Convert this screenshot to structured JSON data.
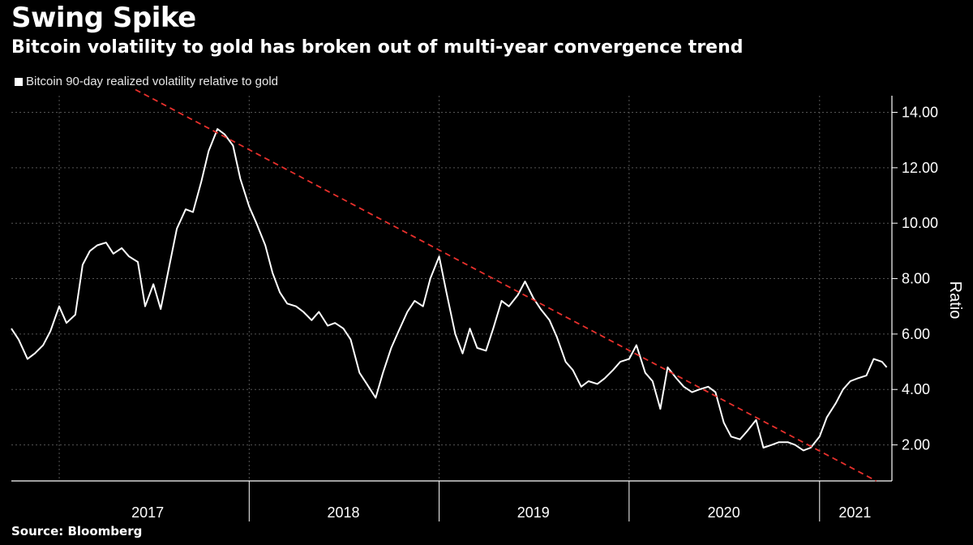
{
  "header": {
    "title": "Swing Spike",
    "subtitle": "Bitcoin volatility to gold has broken out of multi-year convergence trend"
  },
  "footer": {
    "source": "Source: Bloomberg"
  },
  "colors": {
    "background": "#000000",
    "series": "#ffffff",
    "trend": "#e8302c",
    "grid": "#555555"
  },
  "chart_data": {
    "type": "line",
    "title": "Swing Spike",
    "subtitle": "Bitcoin volatility to gold has broken out of multi-year convergence trend",
    "ylabel": "Ratio",
    "legend": "top-left",
    "grid": true,
    "ylim": [
      0.7,
      14.6
    ],
    "xlim": [
      "2016-10-01",
      "2021-03-15"
    ],
    "x_ticks": [
      "2017",
      "2018",
      "2019",
      "2020",
      "2021"
    ],
    "y_ticks": [
      "2.00",
      "4.00",
      "6.00",
      "8.00",
      "10.00",
      "12.00",
      "14.00"
    ],
    "series": [
      {
        "name": "Bitcoin 90-day realized volatility relative to gold",
        "color": "#ffffff",
        "points": [
          [
            "2016-10-01",
            6.2
          ],
          [
            "2016-10-15",
            5.8
          ],
          [
            "2016-11-01",
            5.1
          ],
          [
            "2016-11-15",
            5.3
          ],
          [
            "2016-12-01",
            5.6
          ],
          [
            "2016-12-15",
            6.1
          ],
          [
            "2017-01-01",
            7.0
          ],
          [
            "2017-01-15",
            6.4
          ],
          [
            "2017-02-01",
            6.7
          ],
          [
            "2017-02-15",
            8.5
          ],
          [
            "2017-03-01",
            9.0
          ],
          [
            "2017-03-15",
            9.2
          ],
          [
            "2017-04-01",
            9.3
          ],
          [
            "2017-04-15",
            8.9
          ],
          [
            "2017-05-01",
            9.1
          ],
          [
            "2017-05-15",
            8.8
          ],
          [
            "2017-06-01",
            8.6
          ],
          [
            "2017-06-15",
            7.0
          ],
          [
            "2017-07-01",
            7.8
          ],
          [
            "2017-07-15",
            6.9
          ],
          [
            "2017-08-01",
            8.5
          ],
          [
            "2017-08-15",
            9.8
          ],
          [
            "2017-09-01",
            10.5
          ],
          [
            "2017-09-15",
            10.4
          ],
          [
            "2017-10-01",
            11.5
          ],
          [
            "2017-10-15",
            12.6
          ],
          [
            "2017-11-01",
            13.4
          ],
          [
            "2017-11-15",
            13.2
          ],
          [
            "2017-12-01",
            12.8
          ],
          [
            "2017-12-15",
            11.6
          ],
          [
            "2018-01-01",
            10.6
          ],
          [
            "2018-01-15",
            10.0
          ],
          [
            "2018-02-01",
            9.2
          ],
          [
            "2018-02-15",
            8.2
          ],
          [
            "2018-03-01",
            7.5
          ],
          [
            "2018-03-15",
            7.1
          ],
          [
            "2018-04-01",
            7.0
          ],
          [
            "2018-04-15",
            6.8
          ],
          [
            "2018-05-01",
            6.5
          ],
          [
            "2018-05-15",
            6.8
          ],
          [
            "2018-06-01",
            6.3
          ],
          [
            "2018-06-15",
            6.4
          ],
          [
            "2018-07-01",
            6.2
          ],
          [
            "2018-07-15",
            5.8
          ],
          [
            "2018-08-01",
            4.6
          ],
          [
            "2018-08-15",
            4.2
          ],
          [
            "2018-09-01",
            3.7
          ],
          [
            "2018-09-15",
            4.6
          ],
          [
            "2018-10-01",
            5.5
          ],
          [
            "2018-10-15",
            6.1
          ],
          [
            "2018-11-01",
            6.8
          ],
          [
            "2018-11-15",
            7.2
          ],
          [
            "2018-12-01",
            7.0
          ],
          [
            "2018-12-15",
            8.0
          ],
          [
            "2019-01-01",
            8.8
          ],
          [
            "2019-01-15",
            7.5
          ],
          [
            "2019-02-01",
            6.0
          ],
          [
            "2019-02-15",
            5.3
          ],
          [
            "2019-03-01",
            6.2
          ],
          [
            "2019-03-15",
            5.5
          ],
          [
            "2019-04-01",
            5.4
          ],
          [
            "2019-04-15",
            6.2
          ],
          [
            "2019-05-01",
            7.2
          ],
          [
            "2019-05-15",
            7.0
          ],
          [
            "2019-06-01",
            7.4
          ],
          [
            "2019-06-15",
            7.9
          ],
          [
            "2019-07-01",
            7.3
          ],
          [
            "2019-07-15",
            6.9
          ],
          [
            "2019-08-01",
            6.5
          ],
          [
            "2019-08-15",
            5.9
          ],
          [
            "2019-09-01",
            5.0
          ],
          [
            "2019-09-15",
            4.7
          ],
          [
            "2019-10-01",
            4.1
          ],
          [
            "2019-10-15",
            4.3
          ],
          [
            "2019-11-01",
            4.2
          ],
          [
            "2019-11-15",
            4.4
          ],
          [
            "2019-12-01",
            4.7
          ],
          [
            "2019-12-15",
            5.0
          ],
          [
            "2020-01-01",
            5.1
          ],
          [
            "2020-01-15",
            5.6
          ],
          [
            "2020-02-01",
            4.6
          ],
          [
            "2020-02-15",
            4.3
          ],
          [
            "2020-03-01",
            3.3
          ],
          [
            "2020-03-15",
            4.8
          ],
          [
            "2020-04-01",
            4.4
          ],
          [
            "2020-04-15",
            4.1
          ],
          [
            "2020-05-01",
            3.9
          ],
          [
            "2020-05-15",
            4.0
          ],
          [
            "2020-06-01",
            4.1
          ],
          [
            "2020-06-15",
            3.9
          ],
          [
            "2020-07-01",
            2.8
          ],
          [
            "2020-07-15",
            2.3
          ],
          [
            "2020-08-01",
            2.2
          ],
          [
            "2020-08-15",
            2.5
          ],
          [
            "2020-09-01",
            2.9
          ],
          [
            "2020-09-15",
            1.9
          ],
          [
            "2020-10-01",
            2.0
          ],
          [
            "2020-10-15",
            2.1
          ],
          [
            "2020-11-01",
            2.1
          ],
          [
            "2020-11-15",
            2.0
          ],
          [
            "2020-12-01",
            1.8
          ],
          [
            "2020-12-15",
            1.9
          ],
          [
            "2021-01-01",
            2.3
          ],
          [
            "2021-01-15",
            3.0
          ],
          [
            "2021-02-01",
            3.5
          ],
          [
            "2021-02-15",
            4.0
          ],
          [
            "2021-03-01",
            4.3
          ],
          [
            "2021-03-15",
            4.4
          ],
          [
            "2021-04-01",
            4.5
          ],
          [
            "2021-04-15",
            5.1
          ],
          [
            "2021-05-01",
            5.0
          ],
          [
            "2021-05-10",
            4.8
          ]
        ]
      },
      {
        "name": "",
        "color": "#e8302c",
        "points": [
          [
            "2017-09-01",
            14.0
          ],
          [
            "2021-04-20",
            0.7
          ]
        ]
      }
    ]
  }
}
